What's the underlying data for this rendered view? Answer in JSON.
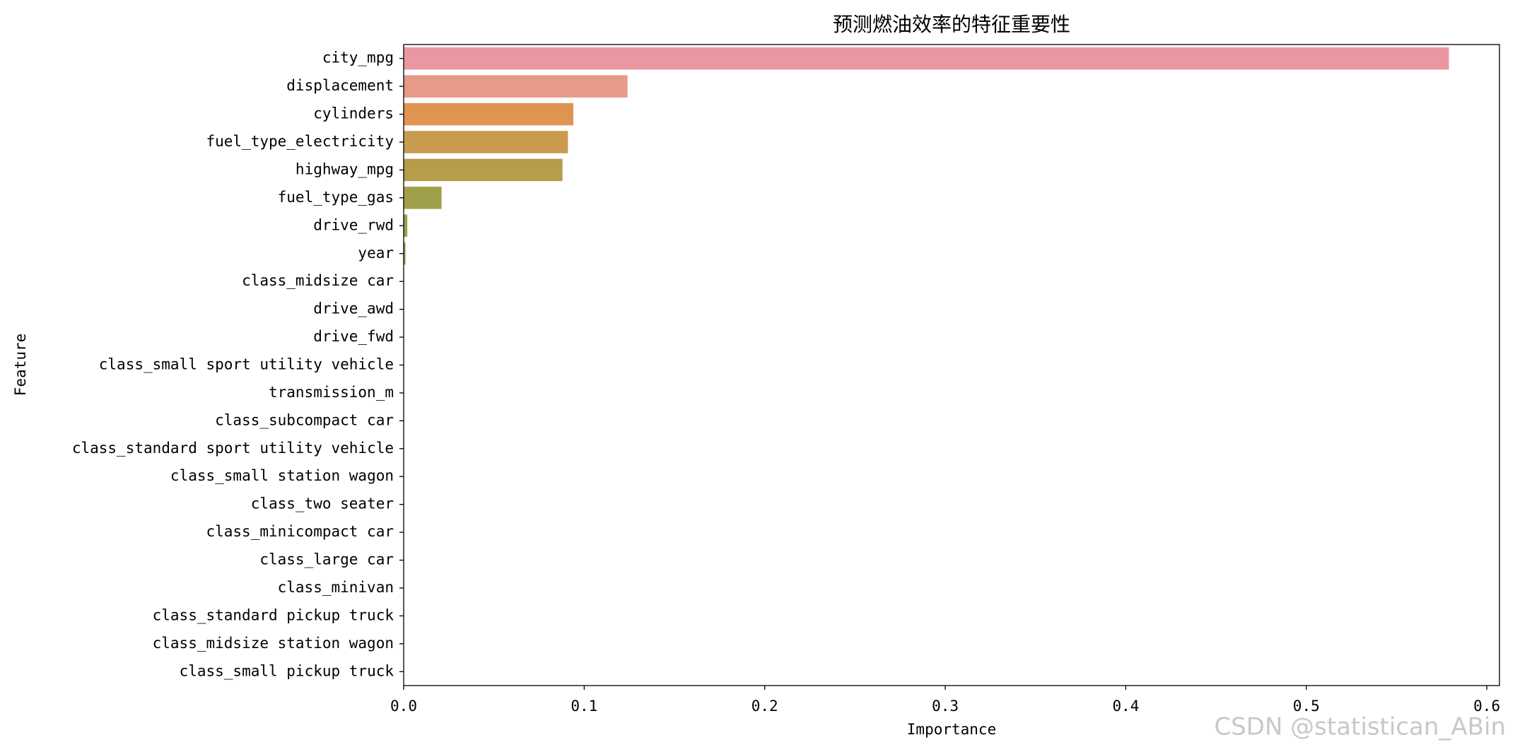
{
  "chart_data": {
    "type": "barh",
    "title": "预测燃油效率的特征重要性",
    "x_label": "Importance",
    "y_label": "Feature",
    "categories": [
      "city_mpg",
      "displacement",
      "cylinders",
      "fuel_type_electricity",
      "highway_mpg",
      "fuel_type_gas",
      "drive_rwd",
      "year",
      "class_midsize car",
      "drive_awd",
      "drive_fwd",
      "class_small sport utility vehicle",
      "transmission_m",
      "class_subcompact car",
      "class_standard sport utility vehicle",
      "class_small station wagon",
      "class_two seater",
      "class_minicompact car",
      "class_large car",
      "class_minivan",
      "class_standard pickup truck",
      "class_midsize station wagon",
      "class_small pickup truck"
    ],
    "values": [
      0.579,
      0.124,
      0.094,
      0.091,
      0.088,
      0.021,
      0.002,
      0.001,
      0,
      0,
      0,
      0,
      0,
      0,
      0,
      0,
      0,
      0,
      0,
      0,
      0,
      0,
      0
    ],
    "colors": [
      "#eb97a2",
      "#e79a88",
      "#df9451",
      "#c99b4f",
      "#b59d4b",
      "#a1a04a",
      "#8fa44a",
      "#80a84b",
      "#6aab5c",
      "#5cad7c",
      "#58ae92",
      "#56aea2",
      "#57adb1",
      "#59acc0",
      "#5eaad2",
      "#74a4e0",
      "#919de6",
      "#a996e6",
      "#bd8ee6",
      "#d086e2",
      "#e07fd2",
      "#e883bd",
      "#ea8aad"
    ],
    "xlim": [
      0,
      0.607
    ],
    "xticks": [
      {
        "value": 0,
        "label": "0.0"
      },
      0.1,
      0.2,
      0.3,
      0.4,
      0.5,
      0.6
    ],
    "watermark": "CSDN @statistican_ABin"
  }
}
